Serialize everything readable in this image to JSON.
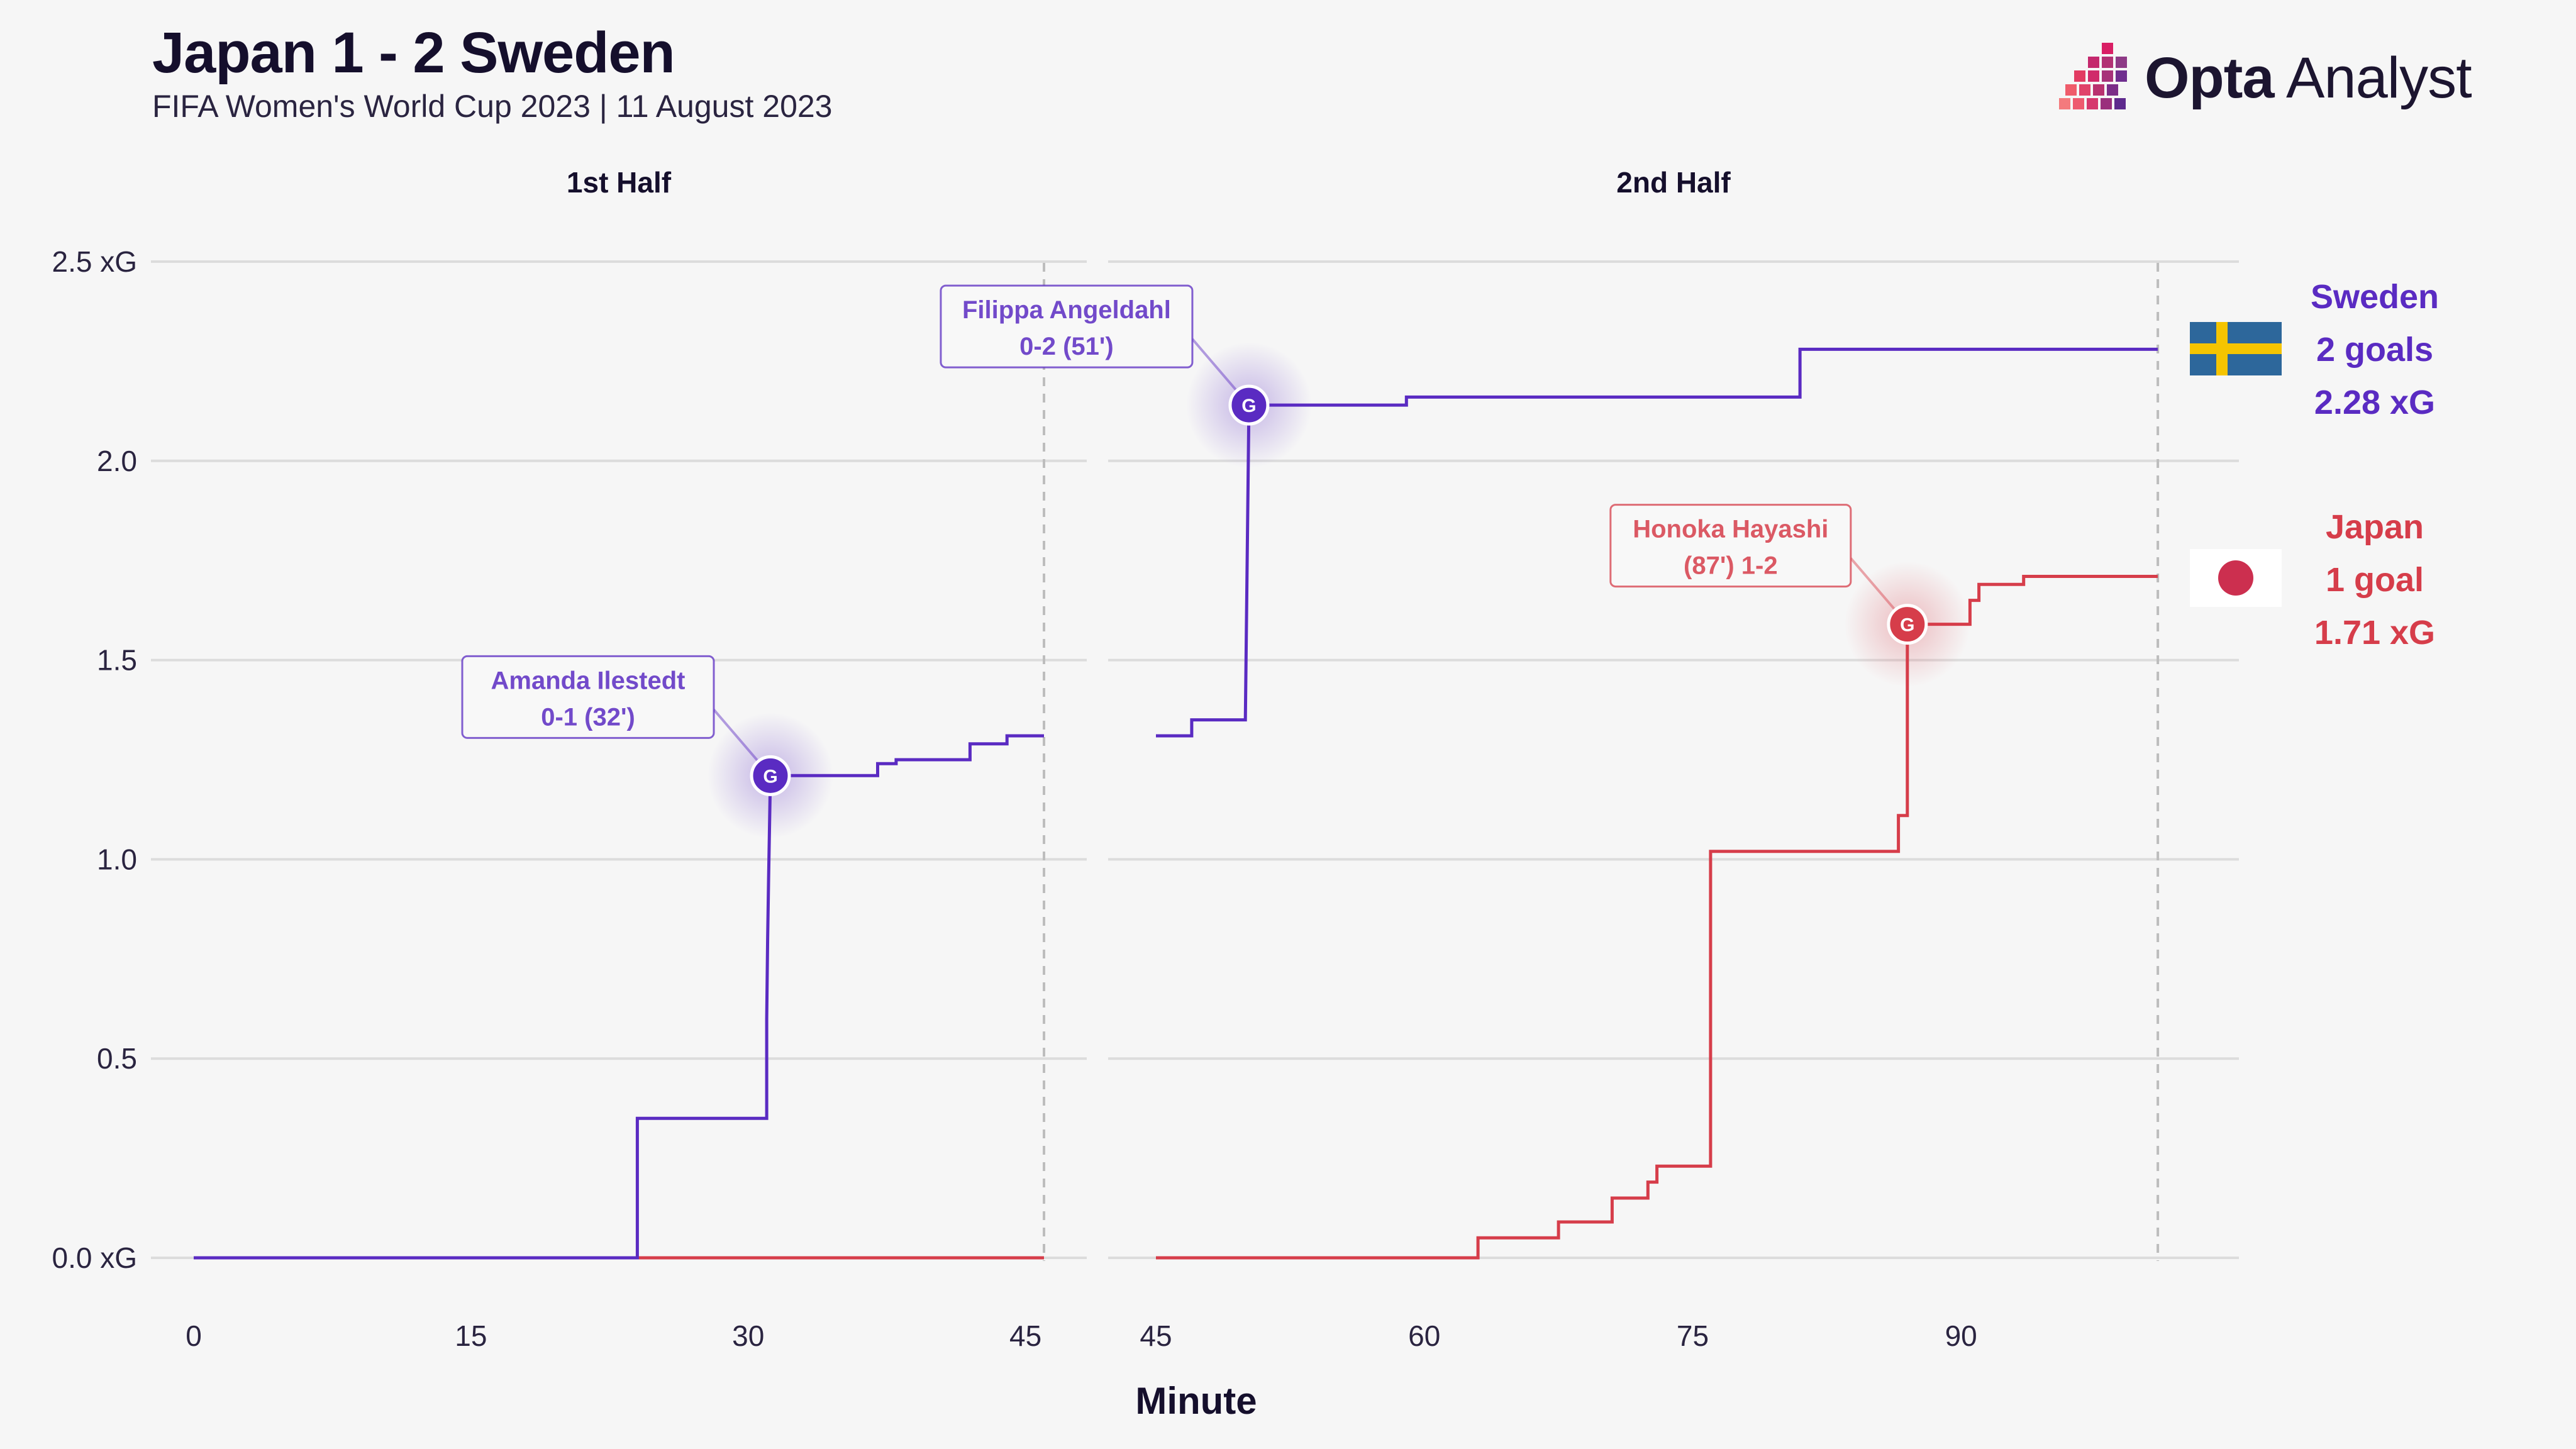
{
  "header": {
    "title": "Japan 1 - 2 Sweden",
    "subtitle": "FIFA Women's World Cup 2023 | 11 August 2023"
  },
  "brand": {
    "name_bold": "Opta",
    "name_light": " Analyst",
    "logo_icon": "opta-pixel-arrow-icon"
  },
  "colors": {
    "sweden": "#5a2bc2",
    "japan": "#d63d4a",
    "background": "#f6f6f6",
    "grid": "#dcdcdc"
  },
  "chart_data": {
    "type": "line",
    "step": true,
    "xlabel": "Minute",
    "ylim": [
      0,
      2.5
    ],
    "yticks": [
      0.0,
      0.5,
      1.0,
      1.5,
      2.0,
      2.5
    ],
    "ytick_labels": [
      "0.0 xG",
      "0.5",
      "1.0",
      "1.5",
      "2.0",
      "2.5 xG"
    ],
    "grid": true,
    "panels": [
      {
        "title": "1st Half",
        "xlim": [
          0,
          46
        ],
        "xticks": [
          0,
          15,
          30,
          45
        ],
        "xtick_labels": [
          "0",
          "15",
          "30",
          "45"
        ],
        "end_marker": 46
      },
      {
        "title": "2nd Half",
        "xlim": [
          45,
          103
        ],
        "xticks": [
          45,
          60,
          75,
          90
        ],
        "xtick_labels": [
          "45",
          "60",
          "75",
          "90"
        ],
        "end_marker": 101
      }
    ],
    "series": [
      {
        "name": "Sweden",
        "color": "#5a2bc2",
        "half1": [
          [
            0,
            0
          ],
          [
            24,
            0
          ],
          [
            24,
            0.35
          ],
          [
            31,
            0.35
          ],
          [
            31,
            0.6
          ],
          [
            31.05,
            0.8
          ],
          [
            31.1,
            0.95
          ],
          [
            31.2,
            1.21
          ],
          [
            37,
            1.21
          ],
          [
            37,
            1.24
          ],
          [
            38,
            1.24
          ],
          [
            38,
            1.25
          ],
          [
            42,
            1.25
          ],
          [
            42,
            1.29
          ],
          [
            44,
            1.29
          ],
          [
            44,
            1.31
          ],
          [
            46,
            1.31
          ]
        ],
        "half2": [
          [
            45,
            1.31
          ],
          [
            47,
            1.31
          ],
          [
            47,
            1.35
          ],
          [
            50,
            1.35
          ],
          [
            50.2,
            2.14
          ],
          [
            59,
            2.14
          ],
          [
            59,
            2.16
          ],
          [
            81,
            2.16
          ],
          [
            81,
            2.28
          ],
          [
            101,
            2.28
          ]
        ]
      },
      {
        "name": "Japan",
        "color": "#d63d4a",
        "half1": [
          [
            24,
            0
          ],
          [
            46,
            0
          ]
        ],
        "half2": [
          [
            45,
            0
          ],
          [
            63,
            0
          ],
          [
            63,
            0.05
          ],
          [
            67.5,
            0.05
          ],
          [
            67.5,
            0.09
          ],
          [
            70.5,
            0.09
          ],
          [
            70.5,
            0.15
          ],
          [
            72.5,
            0.15
          ],
          [
            72.5,
            0.19
          ],
          [
            73,
            0.19
          ],
          [
            73,
            0.23
          ],
          [
            76,
            0.23
          ],
          [
            76,
            1.02
          ],
          [
            86.5,
            1.02
          ],
          [
            86.5,
            1.11
          ],
          [
            87,
            1.11
          ],
          [
            87,
            1.59
          ],
          [
            90.5,
            1.59
          ],
          [
            90.5,
            1.65
          ],
          [
            91,
            1.65
          ],
          [
            91,
            1.69
          ],
          [
            93.5,
            1.69
          ],
          [
            93.5,
            1.71
          ],
          [
            101,
            1.71
          ]
        ]
      }
    ],
    "goals": [
      {
        "team": "Sweden",
        "panel": 0,
        "x": 31.2,
        "y": 1.21,
        "marker": "G",
        "label_line1": "Amanda Ilestedt",
        "label_line2": "0-1 (32')",
        "anchor": "upper-left"
      },
      {
        "team": "Sweden",
        "panel": 1,
        "x": 50.2,
        "y": 2.14,
        "marker": "G",
        "label_line1": "Filippa Angeldahl",
        "label_line2": "0-2 (51')",
        "anchor": "upper-left"
      },
      {
        "team": "Japan",
        "panel": 1,
        "x": 87,
        "y": 1.59,
        "marker": "G",
        "label_line1": "Honoka Hayashi",
        "label_line2": "(87') 1-2",
        "anchor": "upper-left"
      }
    ],
    "legend": {
      "placement": "right",
      "entries": [
        {
          "team": "Sweden",
          "name": "Sweden",
          "goals": "2 goals",
          "xg": "2.28 xG",
          "flag": "sweden-flag-icon"
        },
        {
          "team": "Japan",
          "name": "Japan",
          "goals": "1 goal",
          "xg": "1.71 xG",
          "flag": "japan-flag-icon"
        }
      ]
    }
  }
}
